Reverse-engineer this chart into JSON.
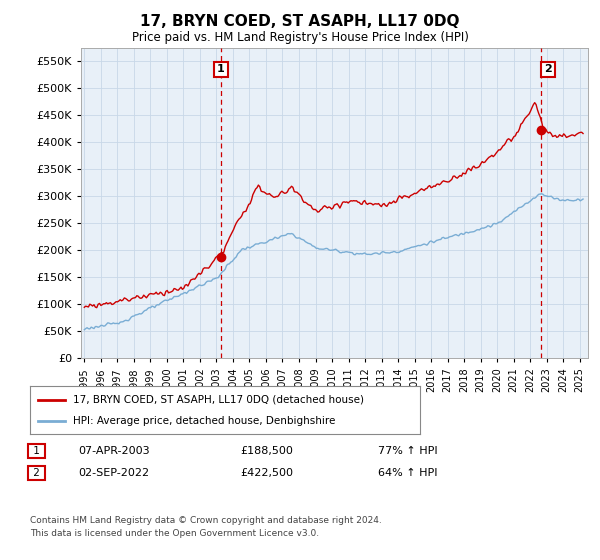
{
  "title": "17, BRYN COED, ST ASAPH, LL17 0DQ",
  "subtitle": "Price paid vs. HM Land Registry's House Price Index (HPI)",
  "ytick_values": [
    0,
    50000,
    100000,
    150000,
    200000,
    250000,
    300000,
    350000,
    400000,
    450000,
    500000,
    550000
  ],
  "ylim": [
    0,
    575000
  ],
  "xlim_start": 1994.8,
  "xlim_end": 2025.5,
  "sale1_date": 2003.27,
  "sale1_price": 188500,
  "sale1_label": "1",
  "sale1_date_str": "07-APR-2003",
  "sale1_price_str": "£188,500",
  "sale1_hpi_str": "77% ↑ HPI",
  "sale2_date": 2022.67,
  "sale2_price": 422500,
  "sale2_label": "2",
  "sale2_date_str": "02-SEP-2022",
  "sale2_price_str": "£422,500",
  "sale2_hpi_str": "64% ↑ HPI",
  "property_color": "#cc0000",
  "hpi_color": "#7aadd4",
  "grid_color": "#c8d8e8",
  "background_color": "#ffffff",
  "plot_bg_color": "#e8f0f8",
  "vline_color": "#cc0000",
  "legend_label_property": "17, BRYN COED, ST ASAPH, LL17 0DQ (detached house)",
  "legend_label_hpi": "HPI: Average price, detached house, Denbighshire",
  "footer": "Contains HM Land Registry data © Crown copyright and database right 2024.\nThis data is licensed under the Open Government Licence v3.0.",
  "xtick_years": [
    1995,
    1996,
    1997,
    1998,
    1999,
    2000,
    2001,
    2002,
    2003,
    2004,
    2005,
    2006,
    2007,
    2008,
    2009,
    2010,
    2011,
    2012,
    2013,
    2014,
    2015,
    2016,
    2017,
    2018,
    2019,
    2020,
    2021,
    2022,
    2023,
    2024,
    2025
  ]
}
